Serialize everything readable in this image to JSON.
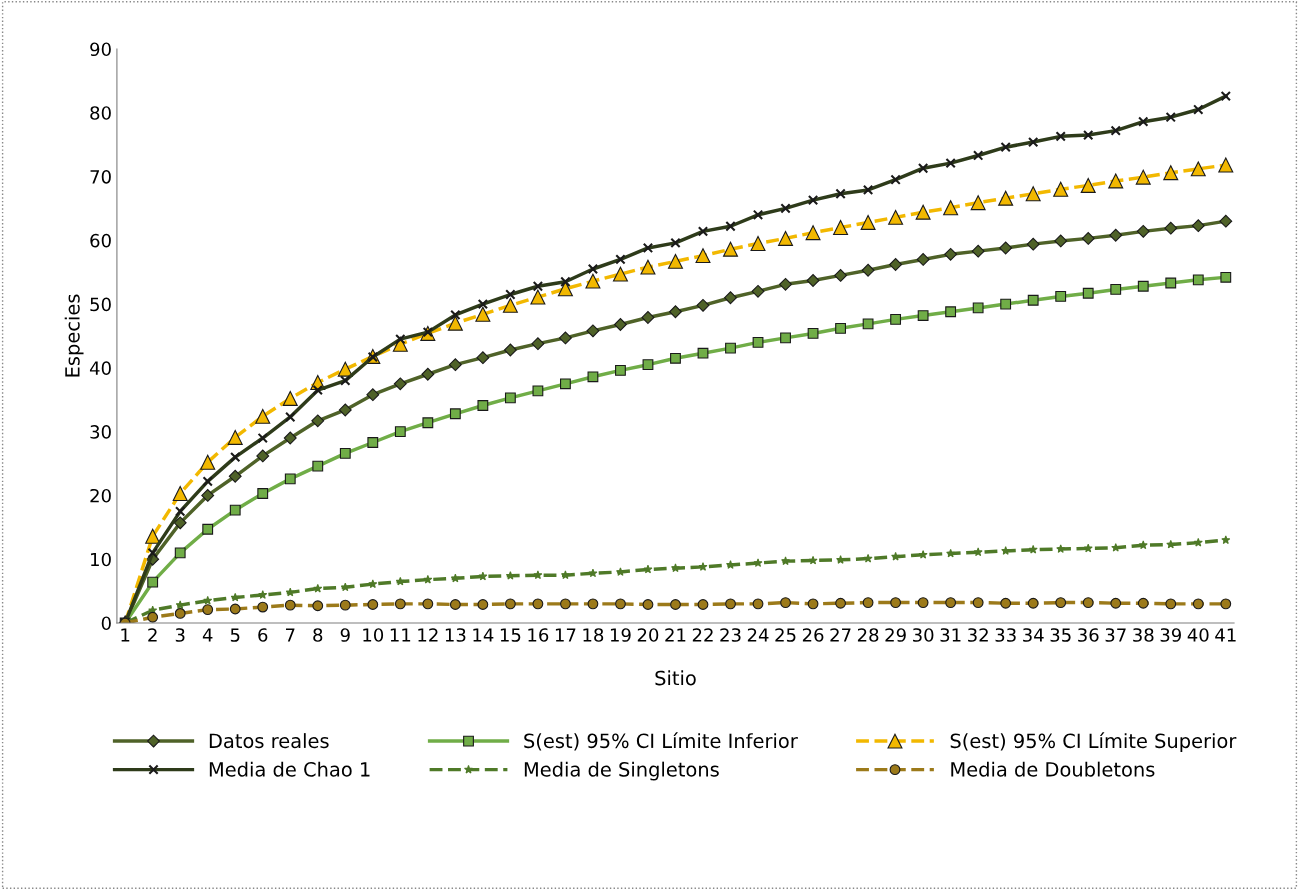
{
  "chart_data": {
    "type": "line",
    "xlabel": "Sitio",
    "ylabel": "Especies",
    "categories": [
      "1",
      "2",
      "3",
      "4",
      "5",
      "6",
      "7",
      "8",
      "9",
      "10",
      "11",
      "12",
      "13",
      "14",
      "15",
      "16",
      "17",
      "18",
      "19",
      "20",
      "21",
      "22",
      "23",
      "24",
      "25",
      "26",
      "27",
      "28",
      "29",
      "30",
      "31",
      "32",
      "33",
      "34",
      "35",
      "36",
      "37",
      "38",
      "39",
      "40",
      "41"
    ],
    "ylim": [
      0,
      90
    ],
    "yticks": [
      0,
      10,
      20,
      30,
      40,
      50,
      60,
      70,
      80,
      90
    ],
    "grid": false,
    "legend": "bottom",
    "series": [
      {
        "name": "Datos reales",
        "color": "#4f6228",
        "marker": "diamond",
        "line_style": "solid",
        "values": [
          0,
          10,
          15.7,
          20,
          23,
          26.2,
          29,
          31.7,
          33.4,
          35.8,
          37.5,
          39,
          40.5,
          41.6,
          42.8,
          43.8,
          44.7,
          45.8,
          46.8,
          47.9,
          48.8,
          49.8,
          51,
          52,
          53.1,
          53.7,
          54.5,
          55.3,
          56.2,
          57,
          57.8,
          58.3,
          58.8,
          59.4,
          59.9,
          60.3,
          60.8,
          61.4,
          61.9,
          62.3,
          63
        ]
      },
      {
        "name": "S(est) 95% CI Límite Inferior",
        "color": "#70ad47",
        "marker": "square",
        "line_style": "solid",
        "values": [
          0,
          6.4,
          11,
          14.7,
          17.7,
          20.3,
          22.6,
          24.6,
          26.6,
          28.3,
          30,
          31.4,
          32.8,
          34.1,
          35.3,
          36.4,
          37.5,
          38.6,
          39.6,
          40.5,
          41.5,
          42.3,
          43.1,
          44,
          44.7,
          45.4,
          46.2,
          46.9,
          47.6,
          48.2,
          48.8,
          49.4,
          50,
          50.6,
          51.2,
          51.7,
          52.3,
          52.8,
          53.3,
          53.8,
          54.2
        ]
      },
      {
        "name": "S(est) 95% CI Límite Superior",
        "color": "#f2b800",
        "marker": "triangle",
        "line_style": "dashed",
        "values": [
          0,
          13.6,
          20.3,
          25.2,
          29.1,
          32.4,
          35.2,
          37.7,
          39.8,
          41.8,
          43.7,
          45.4,
          47,
          48.4,
          49.8,
          51.1,
          52.4,
          53.6,
          54.7,
          55.8,
          56.7,
          57.6,
          58.6,
          59.5,
          60.3,
          61.2,
          62,
          62.8,
          63.6,
          64.4,
          65.1,
          65.9,
          66.6,
          67.3,
          68,
          68.6,
          69.3,
          69.9,
          70.6,
          71.2,
          71.8
        ]
      },
      {
        "name": "Media de Chao 1",
        "color": "#2e3b1a",
        "marker": "cross",
        "line_style": "solid",
        "values": [
          0,
          11,
          17.5,
          22.2,
          26,
          29,
          32.3,
          36.5,
          38,
          41.7,
          44.5,
          45.6,
          48.3,
          50,
          51.5,
          52.8,
          53.5,
          55.5,
          57,
          58.8,
          59.6,
          61.4,
          62.2,
          64,
          65,
          66.3,
          67.3,
          67.9,
          69.5,
          71.3,
          72.1,
          73.3,
          74.6,
          75.4,
          76.3,
          76.5,
          77.2,
          78.6,
          79.3,
          80.5,
          82.6
        ]
      },
      {
        "name": "Media de Singletons",
        "color": "#4f7a28",
        "marker": "star",
        "line_style": "dashed",
        "values": [
          0,
          2,
          2.8,
          3.5,
          4,
          4.4,
          4.8,
          5.4,
          5.6,
          6.1,
          6.5,
          6.8,
          7,
          7.3,
          7.4,
          7.5,
          7.5,
          7.8,
          8,
          8.4,
          8.6,
          8.8,
          9.1,
          9.4,
          9.7,
          9.8,
          9.9,
          10.1,
          10.4,
          10.7,
          10.9,
          11.1,
          11.3,
          11.5,
          11.6,
          11.7,
          11.8,
          12.2,
          12.3,
          12.6,
          13
        ]
      },
      {
        "name": "Media de Doubletons",
        "color": "#9c7a1a",
        "marker": "circle",
        "line_style": "dashed",
        "values": [
          0,
          0.9,
          1.5,
          2.1,
          2.2,
          2.5,
          2.8,
          2.7,
          2.8,
          2.9,
          3,
          3,
          2.9,
          2.9,
          3,
          3,
          3,
          3,
          3,
          2.9,
          2.9,
          2.9,
          3,
          3,
          3.2,
          3,
          3.1,
          3.2,
          3.2,
          3.2,
          3.2,
          3.2,
          3.1,
          3.1,
          3.2,
          3.2,
          3.1,
          3.1,
          3,
          3,
          3
        ]
      }
    ]
  }
}
